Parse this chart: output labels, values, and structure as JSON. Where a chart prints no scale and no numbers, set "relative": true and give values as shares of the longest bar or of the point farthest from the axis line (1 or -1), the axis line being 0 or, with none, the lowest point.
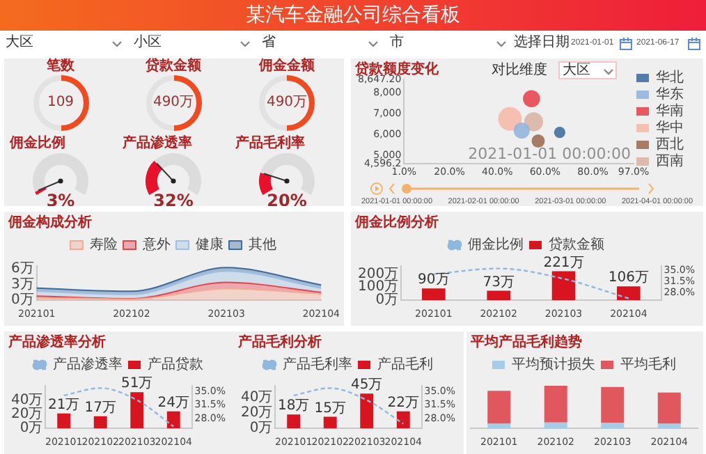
{
  "chart_data": [
    {
      "type": "other",
      "title": "某汽车金融公司综合看板",
      "annotations": [
        "大区",
        "小区",
        "省",
        "市",
        "选择日期",
        "2021-01-01",
        "2021-06-17"
      ]
    },
    {
      "type": "other",
      "title": "笔数",
      "annotations": [
        "109"
      ]
    },
    {
      "type": "other",
      "title": "贷款金额",
      "annotations": [
        "490万"
      ]
    },
    {
      "type": "other",
      "title": "佣金金额",
      "annotations": [
        "490万"
      ]
    },
    {
      "type": "donut",
      "title": "佣金比例",
      "categories": [
        null,
        null
      ],
      "values": [
        3,
        97
      ],
      "colors": [
        "#e8102a",
        "#dcdcdc"
      ],
      "annotations": [
        "3%"
      ]
    },
    {
      "type": "donut",
      "title": "产品渗透率",
      "categories": [
        null,
        null
      ],
      "values": [
        32,
        68
      ],
      "colors": [
        "#e8102a",
        "#dcdcdc"
      ],
      "annotations": [
        "32%"
      ]
    },
    {
      "type": "donut",
      "title": "产品毛利率",
      "categories": [
        null,
        null
      ],
      "values": [
        20,
        80
      ],
      "colors": [
        "#e8102a",
        "#dcdcdc"
      ],
      "annotations": [
        "20%"
      ]
    },
    {
      "type": "bubble",
      "title": "贷款额度变化",
      "xlim": [
        1,
        97
      ],
      "xticks": [
        {
          "value": 1,
          "label": "1.0%"
        },
        {
          "value": 20,
          "label": "20.0%"
        },
        {
          "value": 40,
          "label": "40.0%"
        },
        {
          "value": 60,
          "label": "60.0%"
        },
        {
          "value": 80,
          "label": "80.0%"
        },
        {
          "value": 97,
          "label": "97.0%"
        }
      ],
      "ylim": [
        4596.2,
        8647.2
      ],
      "yticks": [
        {
          "value": 4596.2,
          "label": "4,596.2"
        },
        {
          "value": 5000,
          "label": "5,000"
        },
        {
          "value": 6000,
          "label": "6,000"
        },
        {
          "value": 7000,
          "label": "7,000"
        },
        {
          "value": 8000,
          "label": "8,000"
        },
        {
          "value": 8647.2,
          "label": "8,647.20"
        }
      ],
      "legend": "right",
      "annotations": [
        "对比维度",
        "大区",
        "2021-01-01 00:00:00",
        "2021-01-01 00:00:00",
        "2021-02-01 00:00:00",
        "2021-03-01 00:00:00",
        "2021-04-01 00:00:00"
      ],
      "series": [
        {
          "name": "华北",
          "color": "#3d6a9e",
          "x": [
            66.1
          ],
          "values": [
            6100
          ],
          "sizes": [
            0.23
          ]
        },
        {
          "name": "华东",
          "color": "#8fb3dc",
          "x": [
            50.2
          ],
          "values": [
            6190
          ],
          "sizes": [
            0.46
          ]
        },
        {
          "name": "华南",
          "color": "#e8414b",
          "x": [
            54.3
          ],
          "values": [
            7720
          ],
          "sizes": [
            0.52
          ]
        },
        {
          "name": "华中",
          "color": "#f6b8a8",
          "x": [
            45.3
          ],
          "values": [
            6750
          ],
          "sizes": [
            1
          ]
        },
        {
          "name": "西北",
          "color": "#9b6a4e",
          "x": [
            57.1
          ],
          "values": [
            5690
          ],
          "sizes": [
            0.31
          ]
        },
        {
          "name": "西南",
          "color": "#d9b3a2",
          "x": [
            55.2
          ],
          "values": [
            6610
          ],
          "sizes": [
            0.64
          ]
        }
      ]
    },
    {
      "type": "area",
      "title": "佣金构成分析",
      "categories": [
        "202101",
        "202102",
        "202103",
        "202104"
      ],
      "stacked": true,
      "legend": "top",
      "ylim": [
        0,
        6.5
      ],
      "yticks": [
        {
          "value": 0,
          "label": "0万"
        },
        {
          "value": 3,
          "label": "3万"
        },
        {
          "value": 6,
          "label": "6万"
        }
      ],
      "series": [
        {
          "name": "寿险",
          "color": "#f4a994",
          "values": [
            0.5,
            0.2,
            2.2,
            1.2
          ]
        },
        {
          "name": "意外",
          "color": "#e8414b",
          "values": [
            0.3,
            0.1,
            1.2,
            0.3
          ]
        },
        {
          "name": "健康",
          "color": "#9fc0e4",
          "values": [
            0.9,
            0.8,
            2.1,
            0.8
          ]
        },
        {
          "name": "其他",
          "color": "#3d6a9e",
          "values": [
            0.6,
            0.6,
            0.7,
            0.6
          ]
        }
      ]
    },
    {
      "type": "bar",
      "title": "佣金比例分析",
      "categories": [
        "202101",
        "202102",
        "202103",
        "202104"
      ],
      "legend": "top",
      "marker": "none",
      "line_style": "dashed",
      "ylim": [
        0,
        260
      ],
      "yticks": [
        {
          "value": 0,
          "label": "0万"
        },
        {
          "value": 100,
          "label": "100万"
        },
        {
          "value": 200,
          "label": "200万"
        }
      ],
      "y2lim": [
        25.5,
        36.5
      ],
      "y2ticks": [
        {
          "value": 28,
          "label": "28.0%"
        },
        {
          "value": 31.5,
          "label": "31.5%"
        },
        {
          "value": 35,
          "label": "35.0%"
        }
      ],
      "series": [
        {
          "name": "贷款金额",
          "color": "#d7141f",
          "values": [
            90,
            73,
            221,
            106
          ],
          "value_labels": [
            "90万",
            "73万",
            "221万",
            "106万"
          ]
        },
        {
          "name": "佣金比例",
          "type": "line",
          "axis": "y2",
          "color": "#8fb8dc",
          "values": [
            33.9,
            35.7,
            32.4,
            26.1
          ]
        }
      ]
    },
    {
      "type": "bar",
      "title": "产品渗透率分析",
      "categories": [
        "202101",
        "202102",
        "202103",
        "202104"
      ],
      "legend": "top",
      "marker": "none",
      "line_style": "dashed",
      "ylim": [
        0,
        60
      ],
      "yticks": [
        {
          "value": 0,
          "label": "0万"
        },
        {
          "value": 20,
          "label": "20万"
        },
        {
          "value": 40,
          "label": "40万"
        }
      ],
      "y2lim": [
        25.5,
        36.5
      ],
      "y2ticks": [
        {
          "value": 28,
          "label": "28.0%"
        },
        {
          "value": 31.5,
          "label": "31.5%"
        },
        {
          "value": 35,
          "label": "35.0%"
        }
      ],
      "series": [
        {
          "name": "产品贷款",
          "color": "#d7141f",
          "values": [
            21,
            17,
            51,
            24
          ],
          "value_labels": [
            "21万",
            "17万",
            "51万",
            "24万"
          ]
        },
        {
          "name": "产品渗透率",
          "type": "line",
          "axis": "y2",
          "color": "#8fb8dc",
          "values": [
            34,
            35.9,
            32.8,
            26
          ]
        }
      ]
    },
    {
      "type": "bar",
      "title": "产品毛利分析",
      "categories": [
        "202101",
        "202102",
        "202103",
        "202104"
      ],
      "legend": "top",
      "marker": "none",
      "line_style": "dashed",
      "ylim": [
        0,
        55
      ],
      "yticks": [
        {
          "value": 0,
          "label": "0万"
        },
        {
          "value": 20,
          "label": "20万"
        },
        {
          "value": 40,
          "label": "40万"
        }
      ],
      "y2lim": [
        25.5,
        36.5
      ],
      "y2ticks": [
        {
          "value": 28,
          "label": "28.0%"
        },
        {
          "value": 31.5,
          "label": "31.5%"
        },
        {
          "value": 35,
          "label": "35.0%"
        }
      ],
      "series": [
        {
          "name": "产品毛利",
          "color": "#d7141f",
          "values": [
            18,
            15,
            45,
            22
          ],
          "value_labels": [
            "18万",
            "15万",
            "45万",
            "22万"
          ]
        },
        {
          "name": "产品毛利率",
          "type": "line",
          "axis": "y2",
          "color": "#8fb8dc",
          "values": [
            34,
            35.9,
            32.8,
            26.7
          ]
        }
      ]
    },
    {
      "type": "bar",
      "title": "平均产品毛利趋势",
      "categories": [
        "202101",
        "202102",
        "202103",
        "202104"
      ],
      "relative": true,
      "stacked": true,
      "legend": "top",
      "series": [
        {
          "name": "平均预计损失",
          "color": "#a5cdea",
          "values": [
            0.11,
            0.14,
            0.13,
            0.11
          ]
        },
        {
          "name": "平均毛利",
          "color": "#e0585d",
          "values": [
            0.77,
            0.86,
            0.84,
            0.73
          ]
        }
      ]
    }
  ]
}
